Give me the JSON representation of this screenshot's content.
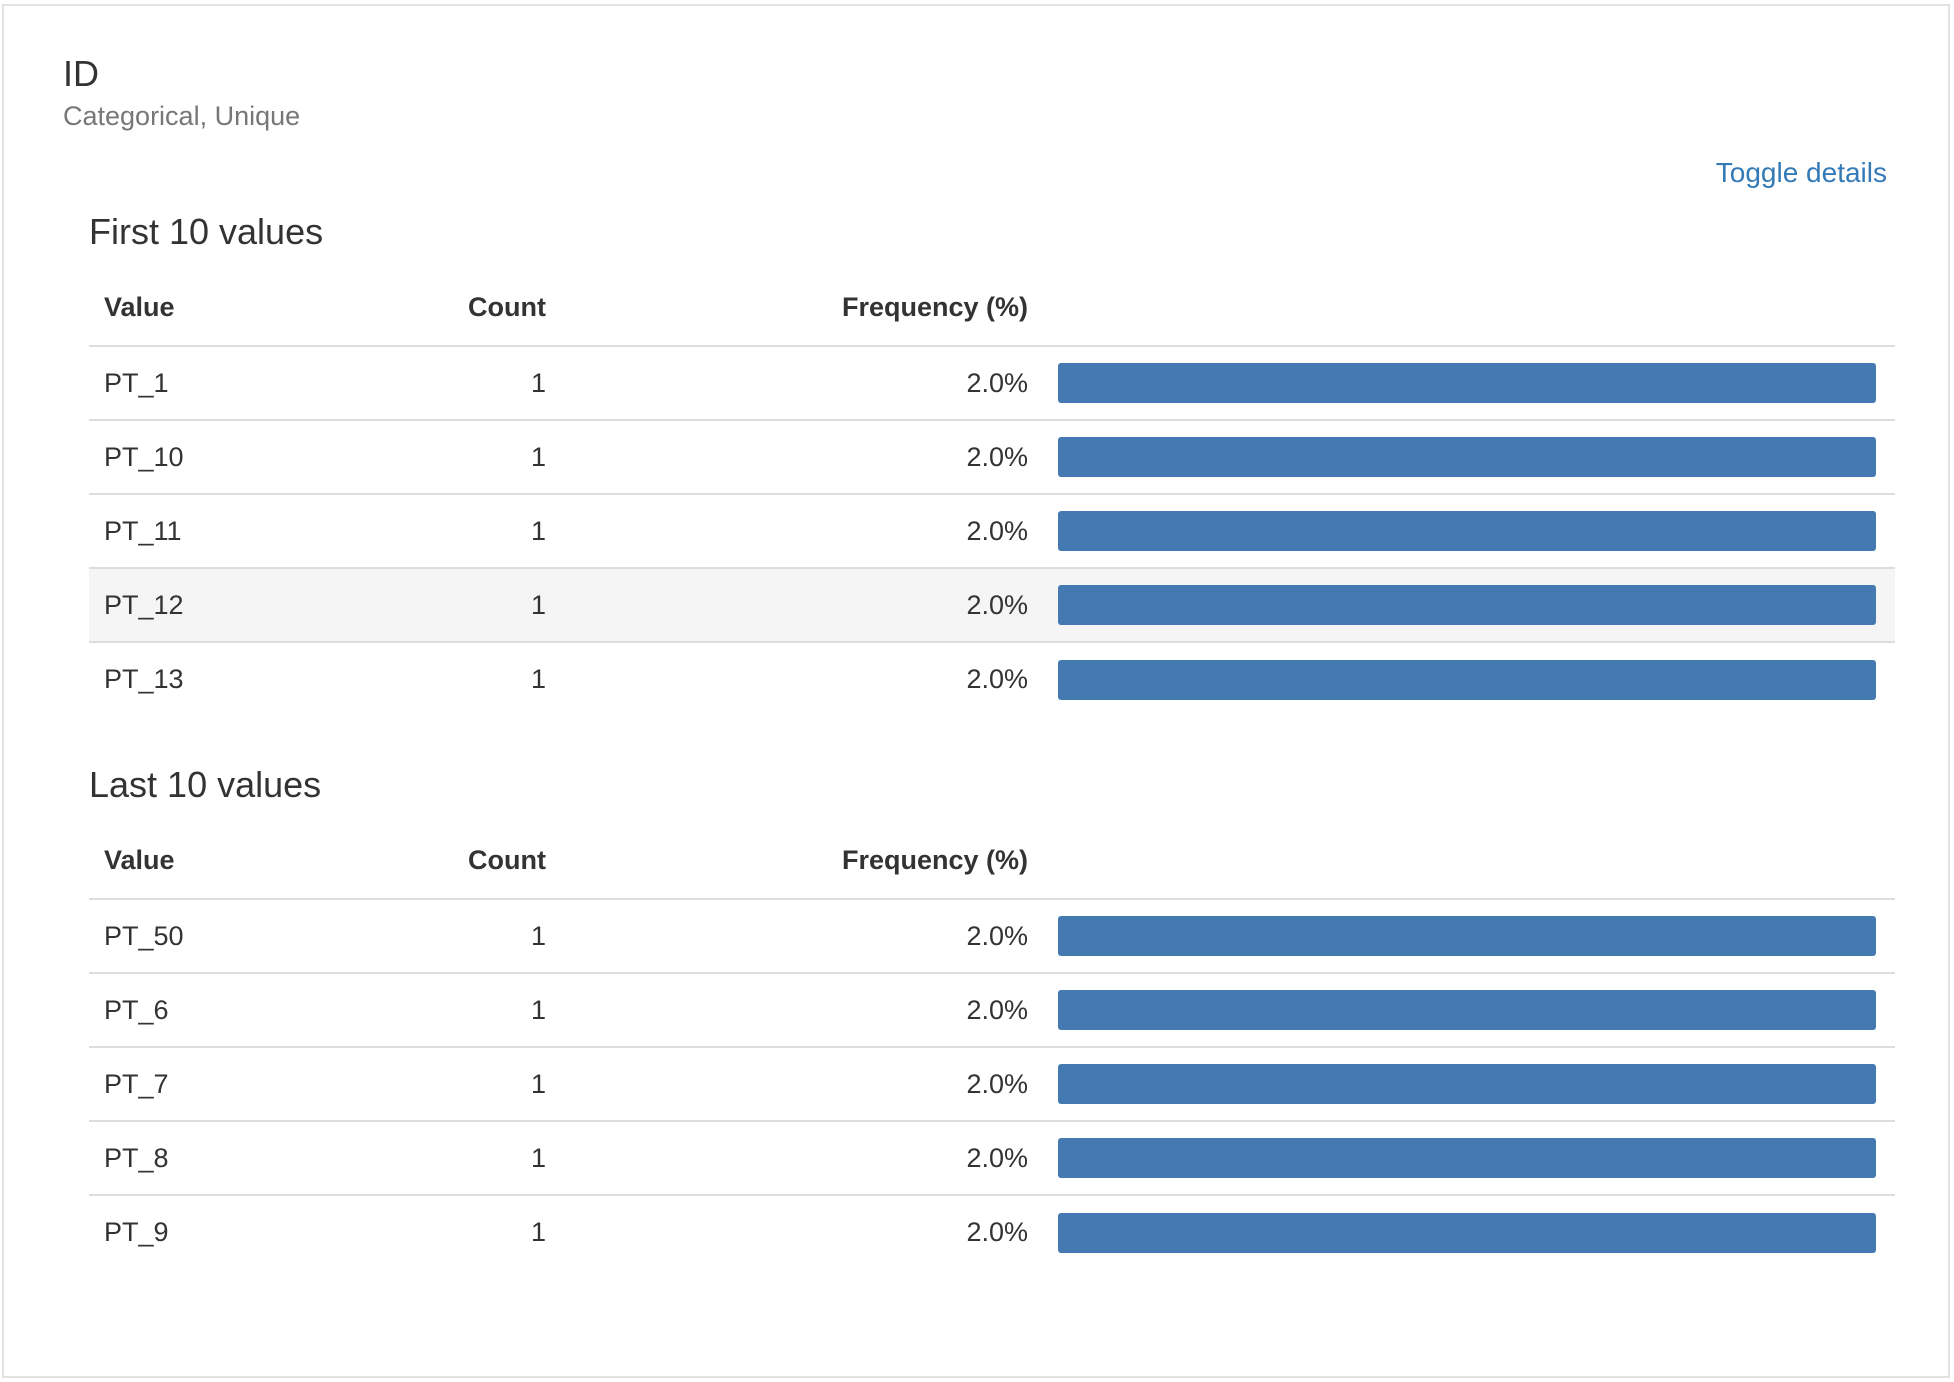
{
  "variable": {
    "name": "ID",
    "type": "Categorical, Unique"
  },
  "toggle_label": "Toggle details",
  "headers": {
    "value": "Value",
    "count": "Count",
    "frequency": "Frequency (%)"
  },
  "first_section": {
    "title": "First 10 values",
    "rows": [
      {
        "value": "PT_1",
        "count": "1",
        "frequency": "2.0%",
        "bar_fraction": 1.0
      },
      {
        "value": "PT_10",
        "count": "1",
        "frequency": "2.0%",
        "bar_fraction": 1.0
      },
      {
        "value": "PT_11",
        "count": "1",
        "frequency": "2.0%",
        "bar_fraction": 1.0
      },
      {
        "value": "PT_12",
        "count": "1",
        "frequency": "2.0%",
        "bar_fraction": 1.0
      },
      {
        "value": "PT_13",
        "count": "1",
        "frequency": "2.0%",
        "bar_fraction": 1.0
      }
    ]
  },
  "last_section": {
    "title": "Last 10 values",
    "rows": [
      {
        "value": "PT_50",
        "count": "1",
        "frequency": "2.0%",
        "bar_fraction": 1.0
      },
      {
        "value": "PT_6",
        "count": "1",
        "frequency": "2.0%",
        "bar_fraction": 1.0
      },
      {
        "value": "PT_7",
        "count": "1",
        "frequency": "2.0%",
        "bar_fraction": 1.0
      },
      {
        "value": "PT_8",
        "count": "1",
        "frequency": "2.0%",
        "bar_fraction": 1.0
      },
      {
        "value": "PT_9",
        "count": "1",
        "frequency": "2.0%",
        "bar_fraction": 1.0
      }
    ]
  },
  "colors": {
    "bar": "#4479b2",
    "link": "#337ab7",
    "row_hover": "#f5f5f5"
  }
}
